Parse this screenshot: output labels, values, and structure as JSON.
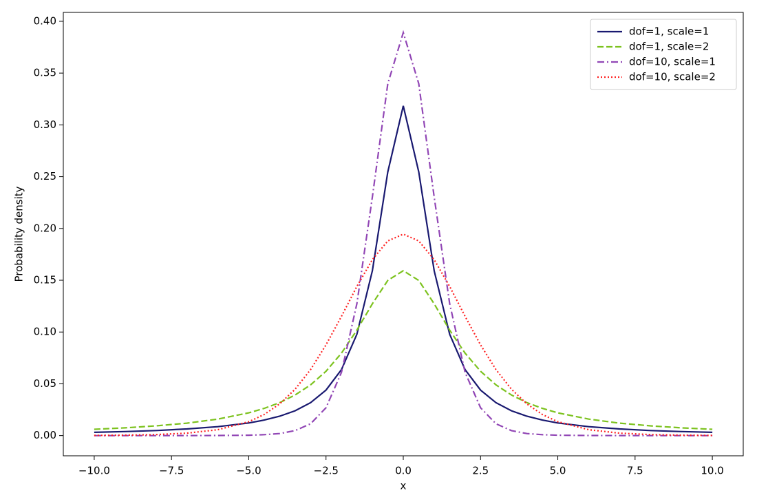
{
  "chart_data": {
    "type": "line",
    "xlabel": "x",
    "ylabel": "Probability density",
    "x": [
      -10,
      -9,
      -8,
      -7,
      -6,
      -5,
      -4.5,
      -4,
      -3.5,
      -3,
      -2.5,
      -2,
      -1.5,
      -1,
      -0.5,
      0,
      0.5,
      1,
      1.5,
      2,
      2.5,
      3,
      3.5,
      4,
      4.5,
      5,
      6,
      7,
      8,
      9,
      10
    ],
    "series": [
      {
        "name": "dof=1, scale=1",
        "color": "#191970",
        "linestyle": "solid",
        "values": [
          0.0032,
          0.0039,
          0.0049,
          0.0064,
          0.0086,
          0.0122,
          0.015,
          0.0187,
          0.024,
          0.0318,
          0.0439,
          0.0637,
          0.0979,
          0.1592,
          0.2546,
          0.3183,
          0.2546,
          0.1592,
          0.0979,
          0.0637,
          0.0439,
          0.0318,
          0.024,
          0.0187,
          0.015,
          0.0122,
          0.0086,
          0.0064,
          0.0049,
          0.0039,
          0.0032
        ]
      },
      {
        "name": "dof=1, scale=2",
        "color": "#7cc21e",
        "linestyle": "dashed",
        "values": [
          0.0061,
          0.0075,
          0.0094,
          0.012,
          0.0159,
          0.022,
          0.0263,
          0.0318,
          0.0392,
          0.049,
          0.0621,
          0.0796,
          0.1019,
          0.1273,
          0.1498,
          0.1592,
          0.1498,
          0.1273,
          0.1019,
          0.0796,
          0.0621,
          0.049,
          0.0392,
          0.0318,
          0.0263,
          0.022,
          0.0159,
          0.012,
          0.0094,
          0.0075,
          0.0061
        ]
      },
      {
        "name": "dof=10, scale=1",
        "color": "#9146b5",
        "linestyle": "dashdot",
        "values": [
          1e-06,
          3e-06,
          1e-05,
          2e-05,
          0.0001,
          0.0004,
          0.0009,
          0.002,
          0.0048,
          0.0114,
          0.0269,
          0.0611,
          0.1275,
          0.2304,
          0.3397,
          0.3891,
          0.3397,
          0.2304,
          0.1275,
          0.0611,
          0.0269,
          0.0114,
          0.0048,
          0.002,
          0.0009,
          0.0004,
          0.0001,
          2e-05,
          1e-05,
          3e-06,
          1e-06
        ]
      },
      {
        "name": "dof=10, scale=2",
        "color": "#ff2020",
        "linestyle": "dotted",
        "values": [
          0.0002,
          0.00045,
          0.001,
          0.0024,
          0.0057,
          0.0134,
          0.0204,
          0.0306,
          0.0448,
          0.0637,
          0.0876,
          0.1152,
          0.144,
          0.1699,
          0.188,
          0.1945,
          0.188,
          0.1699,
          0.144,
          0.1152,
          0.0876,
          0.0637,
          0.0448,
          0.0306,
          0.0204,
          0.0134,
          0.0057,
          0.0024,
          0.001,
          0.00045,
          0.0002
        ]
      }
    ],
    "xlim": [
      -11,
      11
    ],
    "xticks": [
      {
        "value": -10,
        "label": "−10.0"
      },
      {
        "value": -7.5,
        "label": "−7.5"
      },
      {
        "value": -5,
        "label": "−5.0"
      },
      {
        "value": -2.5,
        "label": "−2.5"
      },
      {
        "value": 0,
        "label": "0.0"
      },
      2.5,
      {
        "value": 5,
        "label": "5.0"
      },
      7.5,
      {
        "value": 10,
        "label": "10.0"
      }
    ],
    "ylim": [
      -0.0195,
      0.4086
    ],
    "yticks": [
      {
        "value": 0,
        "label": "0.00"
      },
      0.05,
      {
        "value": 0.1,
        "label": "0.10"
      },
      0.15,
      {
        "value": 0.2,
        "label": "0.20"
      },
      0.25,
      {
        "value": 0.3,
        "label": "0.30"
      },
      0.35,
      {
        "value": 0.4,
        "label": "0.40"
      }
    ],
    "legend": "upper right"
  }
}
